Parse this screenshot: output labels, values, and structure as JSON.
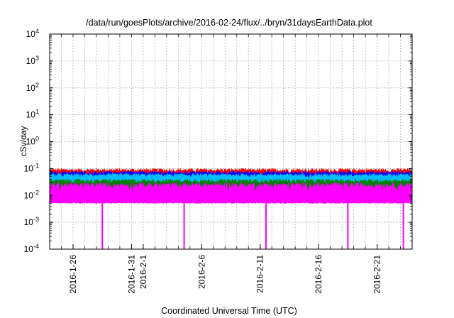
{
  "chart_data": {
    "type": "area",
    "title": "/data/run/goesPlots/archive/2016-02-24/flux/../bryn/31daysEarthData.plot",
    "xlabel": "Coordinated Universal Time (UTC)",
    "ylabel": "cSv/day",
    "yscale": "log",
    "ylim": [
      0.0001,
      10000
    ],
    "xlim": [
      "2016-01-24",
      "2016-02-24"
    ],
    "grid": true,
    "yticks": [
      {
        "base": "10",
        "exp": "-4"
      },
      {
        "base": "10",
        "exp": "-3"
      },
      {
        "base": "10",
        "exp": "-2"
      },
      {
        "base": "10",
        "exp": "-1"
      },
      {
        "base": "10",
        "exp": "0"
      },
      {
        "base": "10",
        "exp": "1"
      },
      {
        "base": "10",
        "exp": "2"
      },
      {
        "base": "10",
        "exp": "3"
      },
      {
        "base": "10",
        "exp": "4"
      }
    ],
    "xticks": [
      {
        "date": "2016-01-26",
        "label": "2016-1-26"
      },
      {
        "date": "2016-01-31",
        "label": "2016-1-31"
      },
      {
        "date": "2016-02-01",
        "label": "2016-2-1"
      },
      {
        "date": "2016-02-06",
        "label": "2016-2-6"
      },
      {
        "date": "2016-02-11",
        "label": "2016-2-11"
      },
      {
        "date": "2016-02-16",
        "label": "2016-2-16"
      },
      {
        "date": "2016-02-21",
        "label": "2016-2-21"
      }
    ],
    "series": [
      {
        "color": "#ff0000",
        "y_min": 0.035,
        "y_max": 0.1
      },
      {
        "color": "#0000ff",
        "y_min": 0.03,
        "y_max": 0.08
      },
      {
        "color": "#00bfff",
        "y_min": 0.025,
        "y_max": 0.065
      },
      {
        "color": "#008000",
        "y_min": 0.015,
        "y_max": 0.04
      },
      {
        "color": "#ff00ff",
        "y_min": 0.005,
        "y_max": 0.03
      }
    ],
    "dips": [
      {
        "date": "2016-01-28 12:00",
        "y": 0.0001
      },
      {
        "date": "2016-02-04 12:00",
        "y": 0.0001
      },
      {
        "date": "2016-02-11 12:00",
        "y": 0.0001
      },
      {
        "date": "2016-02-18 12:00",
        "y": 0.0001
      },
      {
        "date": "2016-02-23 06:00",
        "y": 0.0001
      }
    ]
  }
}
